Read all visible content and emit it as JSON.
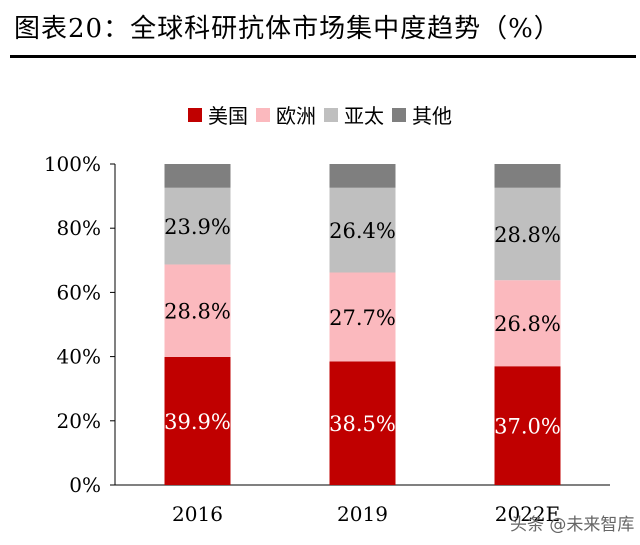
{
  "title": "图表20：全球科研抗体市场集中度趋势（%）",
  "watermark": "头条 @未来智库",
  "chart_data": {
    "type": "bar",
    "stacked": true,
    "categories": [
      "2016",
      "2019",
      "2022E"
    ],
    "series": [
      {
        "name": "美国",
        "values": [
          39.9,
          38.5,
          37.0
        ],
        "labels": [
          "39.9%",
          "38.5%",
          "37.0%"
        ],
        "color": "#C00000",
        "label_color": "#ffffff"
      },
      {
        "name": "欧洲",
        "values": [
          28.8,
          27.7,
          26.8
        ],
        "labels": [
          "28.8%",
          "27.7%",
          "26.8%"
        ],
        "color": "#FBB9BE",
        "label_color": "#000000"
      },
      {
        "name": "亚太",
        "values": [
          23.9,
          26.4,
          28.8
        ],
        "labels": [
          "23.9%",
          "26.4%",
          "28.8%"
        ],
        "color": "#BFBFBF",
        "label_color": "#000000"
      },
      {
        "name": "其他",
        "values": [
          7.4,
          7.4,
          7.4
        ],
        "labels": [],
        "color": "#7F7F7F",
        "label_color": "#ffffff"
      }
    ],
    "yticks": [
      "0%",
      "20%",
      "40%",
      "60%",
      "80%",
      "100%"
    ],
    "ylim": [
      0,
      100
    ],
    "legend_position": "top-center",
    "grid": false
  }
}
